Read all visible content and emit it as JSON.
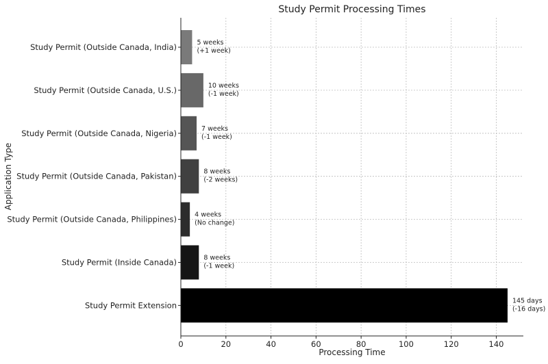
{
  "chart_data": {
    "type": "bar",
    "orientation": "horizontal",
    "title": "Study Permit Processing Times",
    "xlabel": "Processing Time",
    "ylabel": "Application Type",
    "xlim": [
      0,
      152
    ],
    "xticks": [
      0,
      20,
      40,
      60,
      80,
      100,
      120,
      140
    ],
    "grid": true,
    "categories": [
      "Study Permit (Outside Canada, India)",
      "Study Permit (Outside Canada, U.S.)",
      "Study Permit (Outside Canada, Nigeria)",
      "Study Permit (Outside Canada, Pakistan)",
      "Study Permit (Outside Canada, Philippines)",
      "Study Permit (Inside Canada)",
      "Study Permit Extension"
    ],
    "values": [
      5,
      10,
      7,
      8,
      4,
      8,
      145
    ],
    "annotations": [
      [
        "5 weeks",
        "(+1 week)"
      ],
      [
        "10 weeks",
        "(-1 week)"
      ],
      [
        "7 weeks",
        "(-1 week)"
      ],
      [
        "8 weeks",
        "(-2 weeks)"
      ],
      [
        "4 weeks",
        "(No change)"
      ],
      [
        "8 weeks",
        "(-1 week)"
      ],
      [
        "145 days",
        "(-16 days)"
      ]
    ],
    "bar_colors": [
      "#7a7a7a",
      "#686868",
      "#555555",
      "#404040",
      "#2c2c2c",
      "#151515",
      "#000000"
    ]
  }
}
